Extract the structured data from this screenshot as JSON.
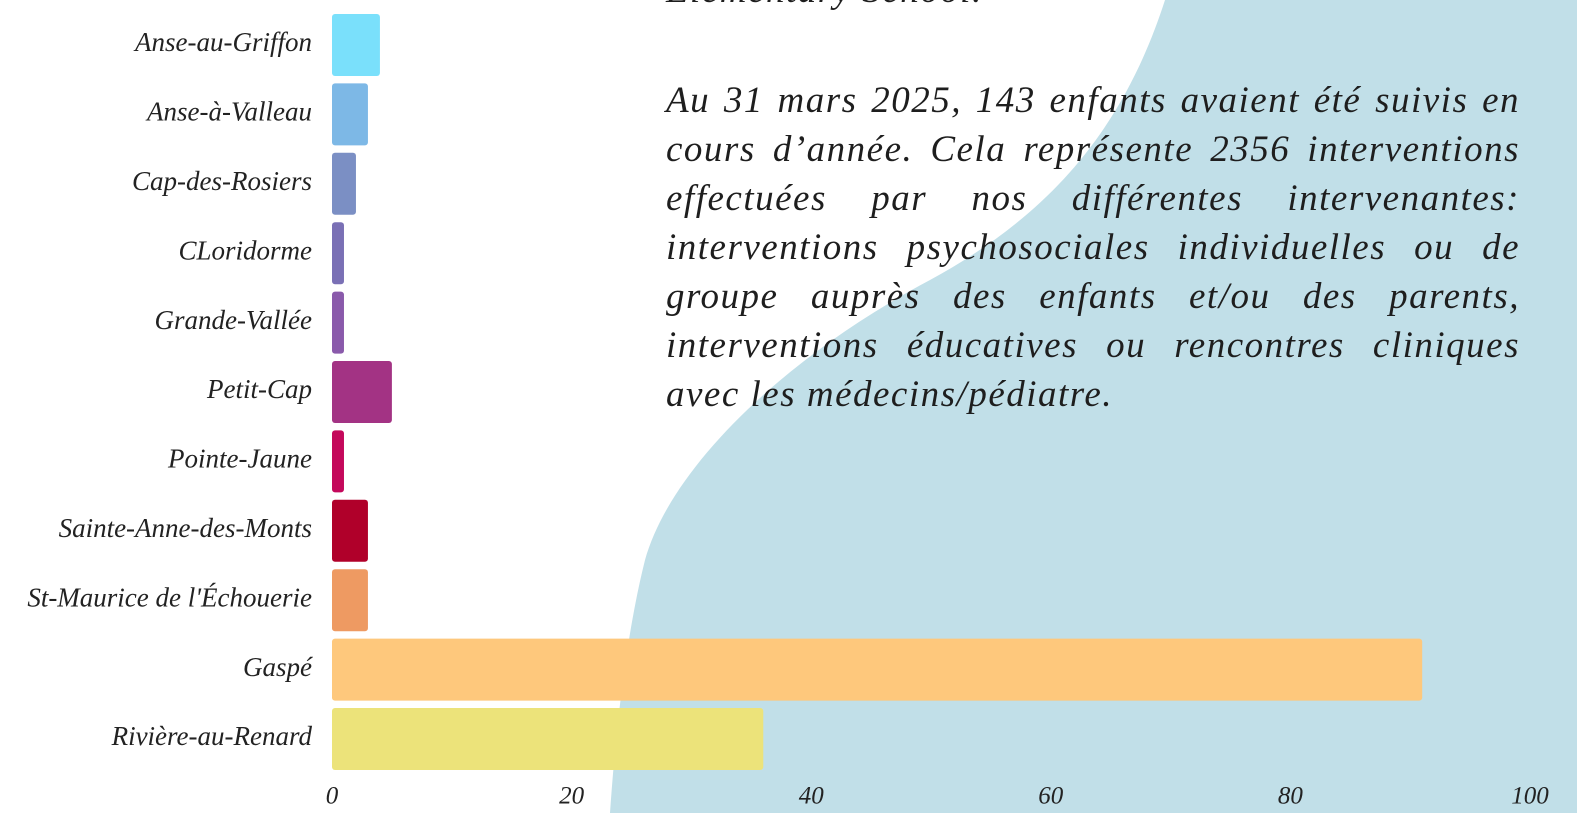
{
  "chart_data": {
    "type": "bar",
    "orientation": "horizontal",
    "categories": [
      "Anse-au-Griffon",
      "Anse-à-Valleau",
      "Cap-des-Rosiers",
      "CLoridorme",
      "Grande-Vallée",
      "Petit-Cap",
      "Pointe-Jaune",
      "Sainte-Anne-des-Monts",
      "St-Maurice de l'Échouerie",
      "Gaspé",
      "Rivière-au-Renard"
    ],
    "values": [
      4,
      3,
      2,
      1,
      1,
      5,
      1,
      3,
      3,
      91,
      36
    ],
    "colors": [
      "#7ae0fb",
      "#7db8e6",
      "#7b8fc4",
      "#7a70b5",
      "#8a5aab",
      "#a33384",
      "#c4085b",
      "#b0002a",
      "#ee9a62",
      "#fec87c",
      "#ece37a"
    ],
    "xlim": [
      0,
      100
    ],
    "xticks": [
      0,
      20,
      40,
      60,
      80,
      100
    ]
  },
  "text": {
    "heading_fragment": "Elementary School.",
    "paragraph": "Au 31 mars 2025, 143 enfants avaient été suivis en cours d’année. Cela représente 2356 interventions effectuées par nos différentes intervenantes: interventions psychosociales individuelles ou de groupe auprès des enfants et/ou des parents, interventions éducatives ou rencontres cliniques avec les médecins/pédiatre."
  }
}
